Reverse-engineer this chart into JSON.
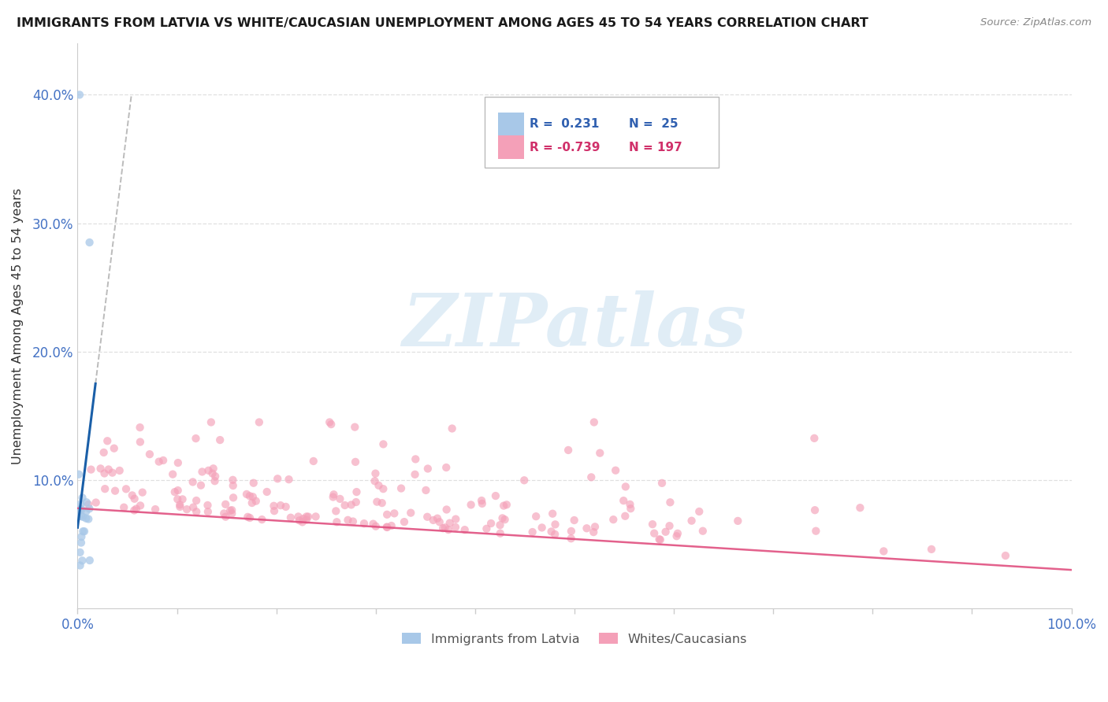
{
  "title": "IMMIGRANTS FROM LATVIA VS WHITE/CAUCASIAN UNEMPLOYMENT AMONG AGES 45 TO 54 YEARS CORRELATION CHART",
  "source": "Source: ZipAtlas.com",
  "ylabel": "Unemployment Among Ages 45 to 54 years",
  "legend_blue_r": "R =  0.231",
  "legend_blue_n": "N =  25",
  "legend_pink_r": "R = -0.739",
  "legend_pink_n": "N = 197",
  "legend_label_blue": "Immigrants from Latvia",
  "legend_label_pink": "Whites/Caucasians",
  "blue_color": "#a8c8e8",
  "pink_color": "#f4a0b8",
  "trend_blue_color": "#1a5fa8",
  "trend_pink_color": "#e05080",
  "xlim": [
    0.0,
    1.0
  ],
  "ylim": [
    0.0,
    0.44
  ],
  "yticks": [
    0.1,
    0.2,
    0.3,
    0.4
  ],
  "ytick_labels": [
    "10.0%",
    "20.0%",
    "30.0%",
    "40.0%"
  ],
  "xtick_labels_show": [
    "0.0%",
    "100.0%"
  ],
  "watermark_text": "ZIPatlas",
  "watermark_color": "#c8dff0",
  "title_color": "#1a1a1a",
  "source_color": "#888888",
  "tick_color": "#4472c4",
  "grid_color": "#cccccc",
  "axis_color": "#cccccc"
}
